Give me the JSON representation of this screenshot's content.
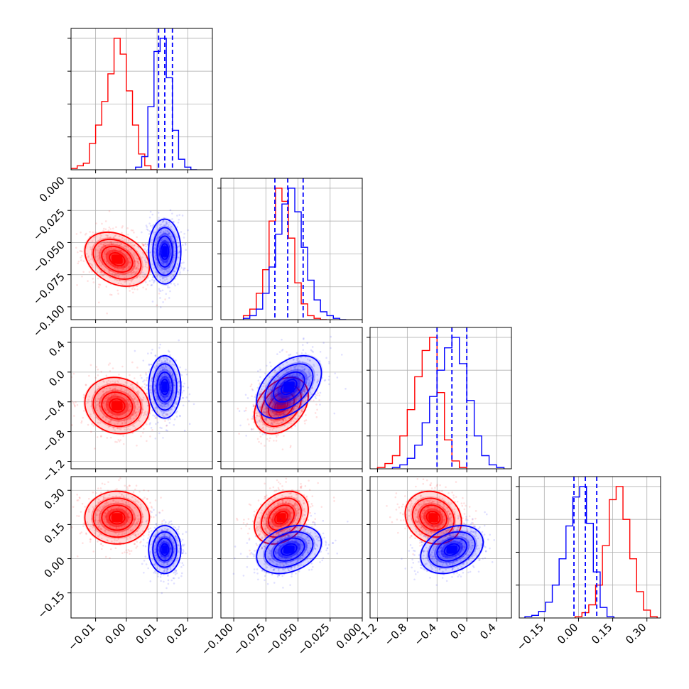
{
  "chart_data": {
    "type": "corner",
    "grid": true,
    "series": [
      {
        "color": "#ff0000",
        "params": [
          {
            "mean": -0.003,
            "sd": 0.005,
            "hist_bins": [
              -0.017,
              -0.015,
              -0.013,
              -0.011,
              -0.009,
              -0.007,
              -0.005,
              -0.003,
              -0.001,
              0.001,
              0.003,
              0.005,
              0.007,
              0.009
            ],
            "hist_counts": [
              1,
              3,
              5,
              20,
              34,
              52,
              73,
              100,
              88,
              60,
              34,
              12,
              3,
              0
            ]
          },
          {
            "mean": -0.063,
            "sd": 0.01,
            "hist_bins": [
              -0.09,
              -0.085,
              -0.08,
              -0.075,
              -0.07,
              -0.065,
              -0.06,
              -0.055,
              -0.05,
              -0.045,
              -0.04,
              -0.035,
              -0.03
            ],
            "hist_counts": [
              3,
              8,
              20,
              38,
              75,
              100,
              90,
              62,
              28,
              12,
              3,
              1,
              0
            ]
          },
          {
            "mean": -0.45,
            "sd": 0.18,
            "hist_bins": [
              -1.15,
              -1.05,
              -0.95,
              -0.85,
              -0.75,
              -0.65,
              -0.55,
              -0.45,
              -0.35,
              -0.25,
              -0.15,
              -0.05
            ],
            "hist_counts": [
              1,
              4,
              10,
              25,
              45,
              70,
              90,
              100,
              58,
              22,
              6,
              1
            ]
          },
          {
            "mean": 0.18,
            "sd": 0.055,
            "hist_bins": [
              0.0,
              0.03,
              0.06,
              0.09,
              0.12,
              0.15,
              0.18,
              0.21,
              0.24,
              0.27,
              0.3,
              0.33
            ],
            "hist_counts": [
              1,
              4,
              10,
              25,
              55,
              90,
              100,
              75,
              45,
              20,
              6,
              1
            ]
          }
        ],
        "correlations": [
          [
            1,
            -0.3,
            -0.1,
            0.0
          ],
          [
            -0.3,
            1,
            0.35,
            0.3
          ],
          [
            -0.1,
            0.35,
            1,
            -0.15
          ],
          [
            0.0,
            0.3,
            -0.15,
            1
          ]
        ]
      },
      {
        "color": "#0000ff",
        "params": [
          {
            "mean": 0.0125,
            "sd": 0.0025,
            "hist_bins": [
              0.004,
              0.006,
              0.008,
              0.01,
              0.012,
              0.014,
              0.016,
              0.018,
              0.02,
              0.022
            ],
            "hist_counts": [
              2,
              10,
              48,
              90,
              100,
              70,
              30,
              8,
              2,
              0
            ]
          },
          {
            "mean": -0.057,
            "sd": 0.012,
            "hist_bins": [
              -0.09,
              -0.085,
              -0.08,
              -0.075,
              -0.07,
              -0.065,
              -0.06,
              -0.055,
              -0.05,
              -0.045,
              -0.04,
              -0.035,
              -0.03,
              -0.025,
              -0.02,
              -0.015
            ],
            "hist_counts": [
              1,
              3,
              8,
              20,
              40,
              65,
              88,
              100,
              82,
              55,
              30,
              15,
              6,
              3,
              1,
              0
            ]
          },
          {
            "mean": -0.2,
            "sd": 0.2,
            "hist_bins": [
              -0.95,
              -0.85,
              -0.75,
              -0.65,
              -0.55,
              -0.45,
              -0.35,
              -0.25,
              -0.15,
              -0.05,
              0.05,
              0.15,
              0.25,
              0.35,
              0.45
            ],
            "hist_counts": [
              1,
              3,
              8,
              18,
              35,
              55,
              75,
              92,
              100,
              80,
              52,
              25,
              10,
              3,
              1
            ]
          },
          {
            "mean": 0.04,
            "sd": 0.05,
            "hist_bins": [
              -0.22,
              -0.19,
              -0.16,
              -0.13,
              -0.1,
              -0.07,
              -0.04,
              -0.01,
              0.02,
              0.05,
              0.08,
              0.11,
              0.14
            ],
            "hist_counts": [
              1,
              2,
              5,
              12,
              25,
              45,
              70,
              92,
              100,
              72,
              35,
              8,
              1
            ]
          }
        ],
        "correlations": [
          [
            1,
            0.0,
            0.0,
            0.0
          ],
          [
            0.0,
            1,
            0.45,
            0.3
          ],
          [
            0.0,
            0.45,
            1,
            0.3
          ],
          [
            0.0,
            0.3,
            0.3,
            1
          ]
        ]
      }
    ],
    "quantile_lines": [
      [
        0.0105,
        0.0125,
        0.015
      ],
      [
        -0.068,
        -0.058,
        -0.046
      ],
      [
        -0.4,
        -0.2,
        0.0
      ],
      [
        -0.02,
        0.03,
        0.08
      ]
    ],
    "axis_ranges": [
      [
        -0.018,
        0.028
      ],
      [
        -0.11,
        0.0
      ],
      [
        -1.3,
        0.6
      ],
      [
        -0.26,
        0.36
      ]
    ],
    "ticks": [
      {
        "values": [
          -0.01,
          0.0,
          0.01,
          0.02
        ],
        "labels": [
          "−0.01",
          "0.00",
          "0.01",
          "0.02"
        ]
      },
      {
        "values": [
          -0.1,
          -0.075,
          -0.05,
          -0.025,
          0.0
        ],
        "labels": [
          "−0.100",
          "−0.075",
          "−0.050",
          "−0.025",
          "0.000"
        ]
      },
      {
        "values": [
          -1.2,
          -0.8,
          -0.4,
          0.0,
          0.4
        ],
        "labels": [
          "−1.2",
          "−0.8",
          "−0.4",
          "0.0",
          "0.4"
        ]
      },
      {
        "values": [
          -0.15,
          0.0,
          0.15,
          0.3
        ],
        "labels": [
          "−0.15",
          "0.00",
          "0.15",
          "0.30"
        ]
      }
    ]
  }
}
